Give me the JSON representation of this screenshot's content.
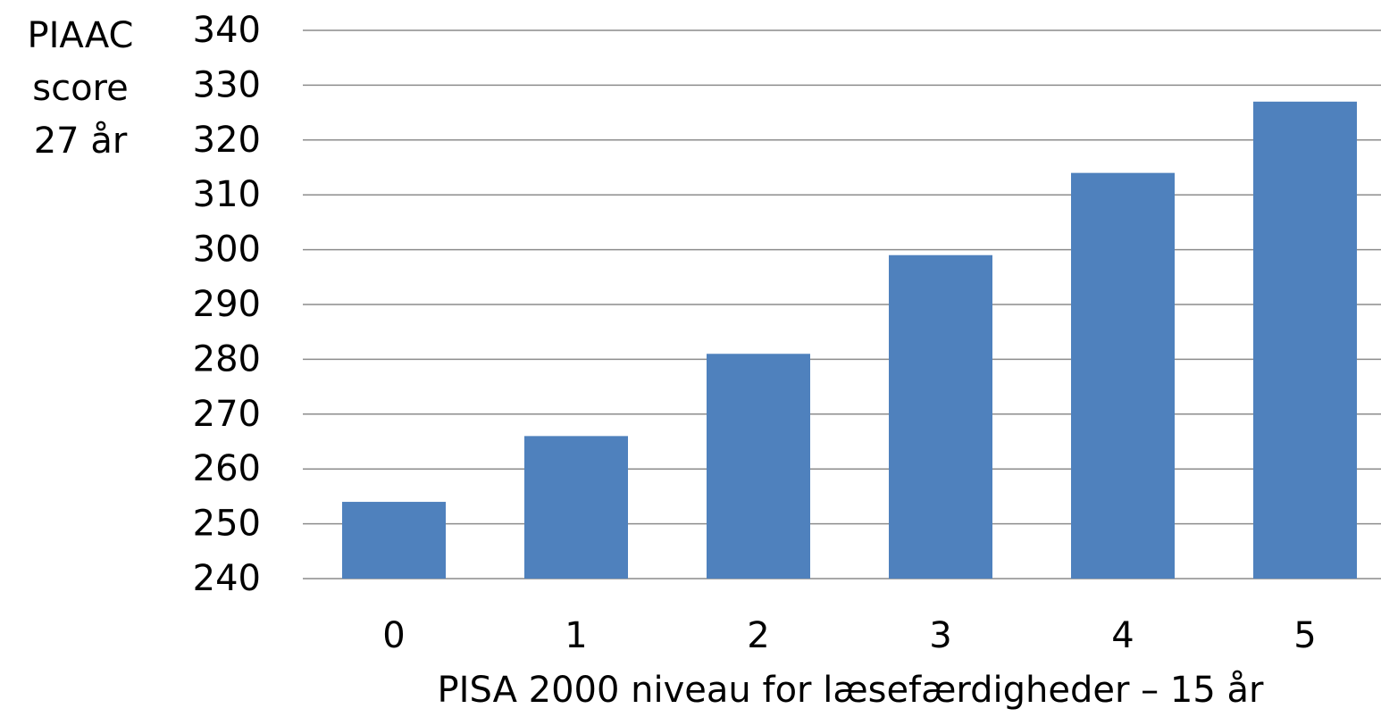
{
  "chart_data": {
    "type": "bar",
    "y_label": [
      "PIAAC",
      "score",
      "27 år"
    ],
    "x_label": "PISA 2000 niveau for læsefærdigheder – 15 år",
    "categories": [
      "0",
      "1",
      "2",
      "3",
      "4",
      "5"
    ],
    "values": [
      254,
      266,
      281,
      299,
      314,
      327
    ],
    "color": "#4f81bd",
    "ylim": [
      240,
      340
    ],
    "yticks": [
      240,
      250,
      260,
      270,
      280,
      290,
      300,
      310,
      320,
      330,
      340
    ],
    "grid": true
  }
}
